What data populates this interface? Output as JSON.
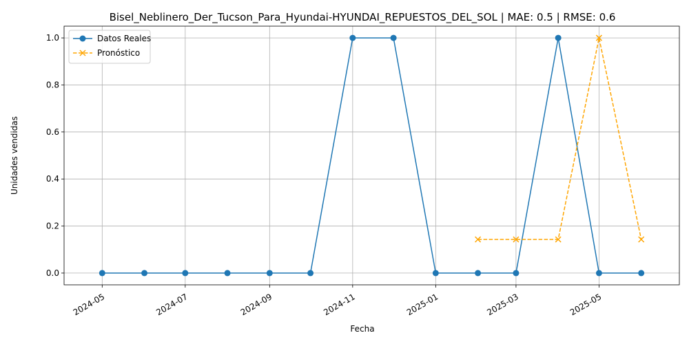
{
  "chart_data": {
    "type": "line",
    "title": "Bisel_Neblinero_Der_Tucson_Para_Hyundai-HYUNDAI_REPUESTOS_DEL_SOL | MAE: 0.5 | RMSE: 0.6",
    "xlabel": "Fecha",
    "ylabel": "Unidades vendidas",
    "xlim": [
      "2024-04-03",
      "2025-06-29"
    ],
    "ylim": [
      -0.05,
      1.05
    ],
    "x_ticks": [
      "2024-05",
      "2024-07",
      "2024-09",
      "2024-11",
      "2025-01",
      "2025-03",
      "2025-05"
    ],
    "x_tick_dates": [
      "2024-05-01",
      "2024-07-01",
      "2024-09-01",
      "2024-11-01",
      "2025-01-01",
      "2025-03-01",
      "2025-05-01"
    ],
    "y_ticks": [
      "0.0",
      "0.2",
      "0.4",
      "0.6",
      "0.8",
      "1.0"
    ],
    "y_tick_values": [
      0.0,
      0.2,
      0.4,
      0.6,
      0.8,
      1.0
    ],
    "grid": true,
    "legend_position": "top-left",
    "series": [
      {
        "name": "Datos Reales",
        "color": "#1f77b4",
        "marker": "circle",
        "line_style": "solid",
        "x": [
          "2024-05-01",
          "2024-06-01",
          "2024-07-01",
          "2024-08-01",
          "2024-09-01",
          "2024-10-01",
          "2024-11-01",
          "2024-12-01",
          "2025-01-01",
          "2025-02-01",
          "2025-03-01",
          "2025-04-01",
          "2025-05-01",
          "2025-06-01"
        ],
        "values": [
          0,
          0,
          0,
          0,
          0,
          0,
          1,
          1,
          0,
          0,
          0,
          1,
          0,
          0
        ]
      },
      {
        "name": "Pronóstico",
        "color": "#ffa500",
        "marker": "x",
        "line_style": "dashed",
        "x": [
          "2025-02-01",
          "2025-03-01",
          "2025-04-01",
          "2025-05-01",
          "2025-06-01"
        ],
        "values": [
          0.143,
          0.143,
          0.143,
          1.0,
          0.143
        ]
      }
    ]
  }
}
